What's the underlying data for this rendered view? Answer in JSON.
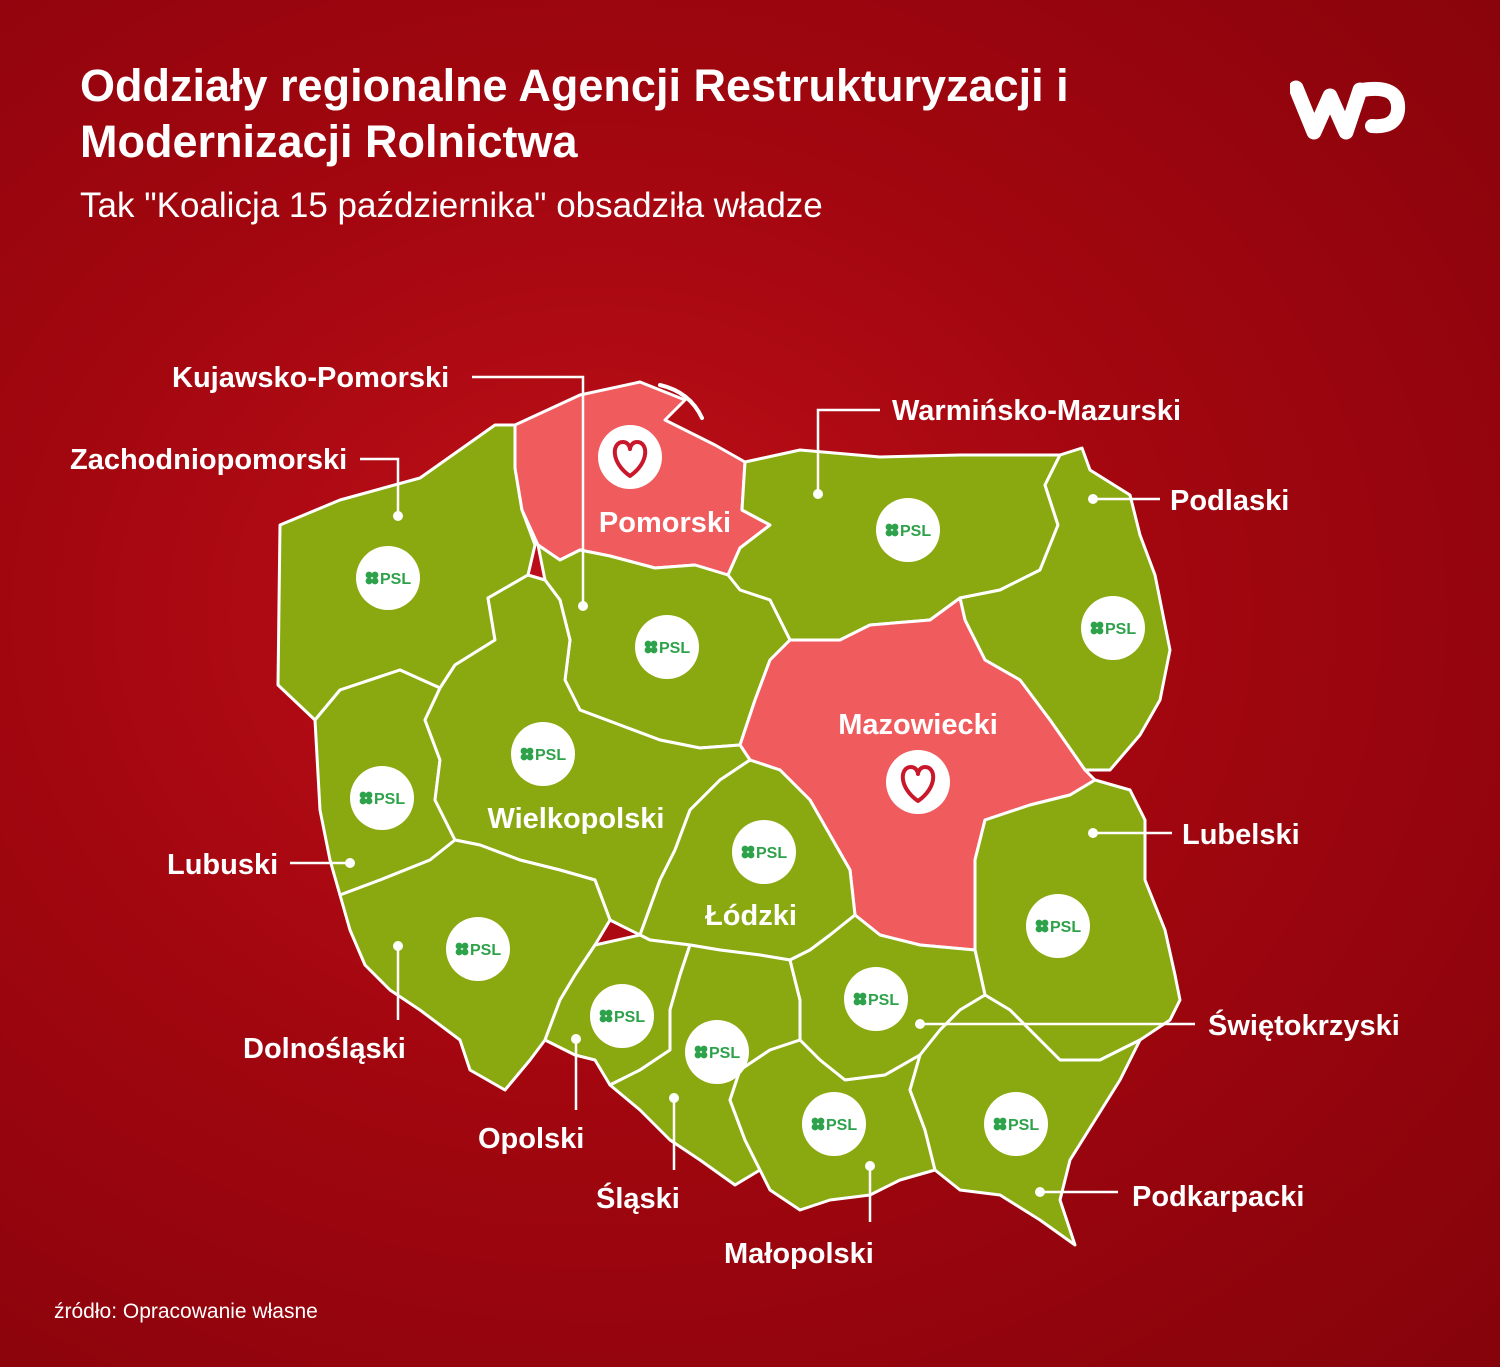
{
  "header": {
    "title": "Oddziały regionalne Agencji Restrukturyzacji i Modernizacji Rolnictwa",
    "subtitle": "Tak \"Koalicja 15 października\" obsadziła władze",
    "logo": "WP"
  },
  "source": "źródło: Opracowanie własne",
  "colors": {
    "psl": "#8aa810",
    "heart_party": "#f05b5e",
    "background": "#a2060f",
    "psl_badge_text": "#2ea24a"
  },
  "legend": {
    "psl_badge": "PSL",
    "heart_icon": "heart-icon"
  },
  "regions": [
    {
      "name": "Zachodniopomorski",
      "party": "PSL"
    },
    {
      "name": "Pomorski",
      "party": "heart"
    },
    {
      "name": "Warmińsko-Mazurski",
      "party": "PSL"
    },
    {
      "name": "Podlaski",
      "party": "PSL"
    },
    {
      "name": "Kujawsko-Pomorski",
      "party": "PSL"
    },
    {
      "name": "Mazowiecki",
      "party": "heart"
    },
    {
      "name": "Lubuski",
      "party": "PSL"
    },
    {
      "name": "Wielkopolski",
      "party": "PSL"
    },
    {
      "name": "Łódzki",
      "party": "PSL"
    },
    {
      "name": "Lubelski",
      "party": "PSL"
    },
    {
      "name": "Dolnośląski",
      "party": "PSL"
    },
    {
      "name": "Opolski",
      "party": "PSL"
    },
    {
      "name": "Śląski",
      "party": "PSL"
    },
    {
      "name": "Świętokrzyski",
      "party": "PSL"
    },
    {
      "name": "Małopolski",
      "party": "PSL"
    },
    {
      "name": "Podkarpacki",
      "party": "PSL"
    }
  ]
}
